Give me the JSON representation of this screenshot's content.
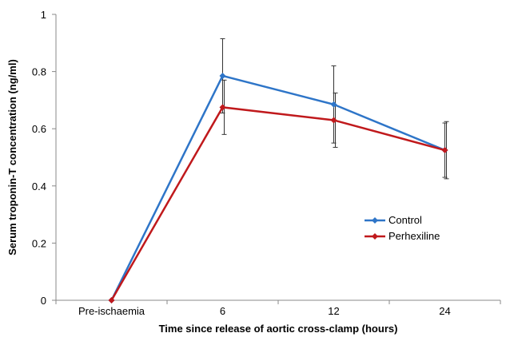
{
  "chart_data": {
    "type": "line",
    "title": "",
    "xlabel": "Time since release of aortic cross-clamp (hours)",
    "ylabel": "Serum troponin-T concentration (ng/ml)",
    "categories": [
      "Pre-ischaemia",
      "6",
      "12",
      "24"
    ],
    "ylim": [
      0,
      1
    ],
    "yticks": [
      "0",
      "0.2",
      "0.4",
      "0.6",
      "0.8",
      "1"
    ],
    "grid": false,
    "legend_position": "right",
    "series": [
      {
        "name": "Control",
        "color": "#2e75c8",
        "values": [
          0,
          0.785,
          0.685,
          0.525
        ],
        "error": [
          null,
          0.13,
          0.135,
          0.095
        ]
      },
      {
        "name": "Perhexiline",
        "color": "#c0191c",
        "values": [
          0,
          0.675,
          0.63,
          0.525
        ],
        "error": [
          null,
          0.095,
          0.095,
          0.1
        ]
      }
    ]
  }
}
